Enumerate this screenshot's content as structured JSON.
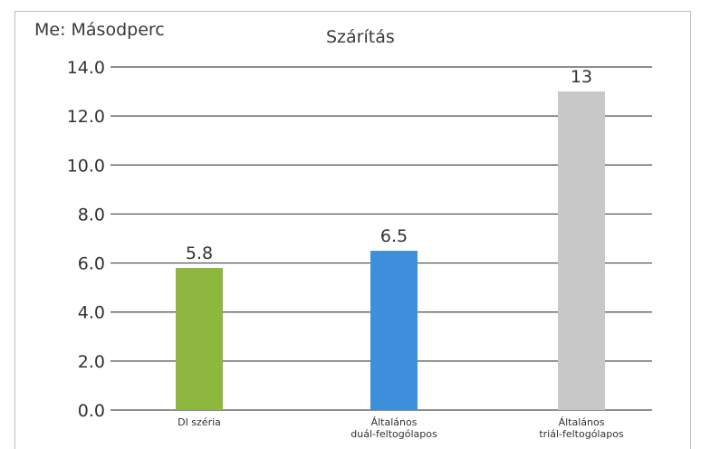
{
  "chart_data": {
    "type": "bar",
    "title": "Szárítás",
    "unit_label": "Me: Másodperc",
    "categories": [
      [
        "DI széria"
      ],
      [
        "Általános",
        "duál-feltogólapos"
      ],
      [
        "Általános",
        "triál-feltogólapos"
      ]
    ],
    "values": [
      5.8,
      6.5,
      13
    ],
    "value_labels": [
      "5.8",
      "6.5",
      "13"
    ],
    "colors": [
      "#8db73e",
      "#3d8fdc",
      "#c8c8c8"
    ],
    "ylim": [
      0,
      14
    ],
    "yticks": [
      "0.0",
      "2.0",
      "4.0",
      "6.0",
      "8.0",
      "10.0",
      "12.0",
      "14.0"
    ],
    "grid": true,
    "grid_color": "#4a4a4a"
  }
}
